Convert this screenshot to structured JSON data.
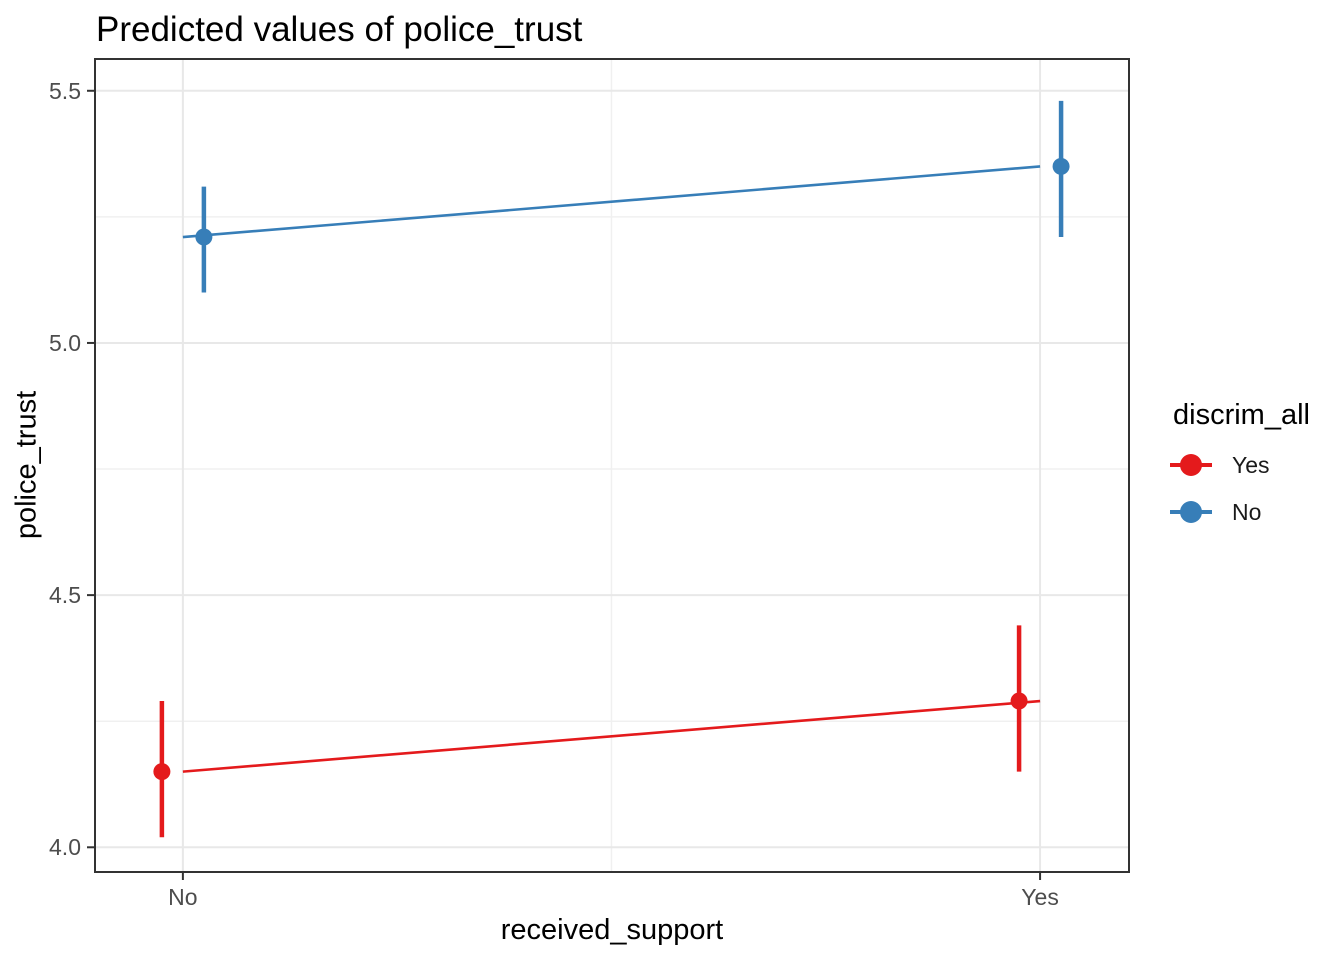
{
  "chart_data": {
    "type": "line",
    "title": "Predicted values of police_trust",
    "xlabel": "received_support",
    "ylabel": "police_trust",
    "categories": [
      "No",
      "Yes"
    ],
    "y_ticks": [
      4.0,
      4.5,
      5.0,
      5.5
    ],
    "ylim": [
      3.951,
      5.563
    ],
    "grid": true,
    "legend_title": "discrim_all",
    "legend_position": "right",
    "series": [
      {
        "name": "Yes",
        "color": "#E41A1C",
        "predicted": [
          4.15,
          4.29
        ],
        "ci_low": [
          4.02,
          4.15
        ],
        "ci_high": [
          4.29,
          4.44
        ]
      },
      {
        "name": "No",
        "color": "#377EB8",
        "predicted": [
          5.21,
          5.35
        ],
        "ci_low": [
          5.1,
          5.21
        ],
        "ci_high": [
          5.31,
          5.48
        ]
      }
    ],
    "style": {
      "panel_border_color": "#333333",
      "major_grid_color": "#e8e8e8",
      "minor_grid_color": "#f0f0f0",
      "tick_color": "#333333",
      "tick_label_color": "#4d4d4d"
    }
  }
}
